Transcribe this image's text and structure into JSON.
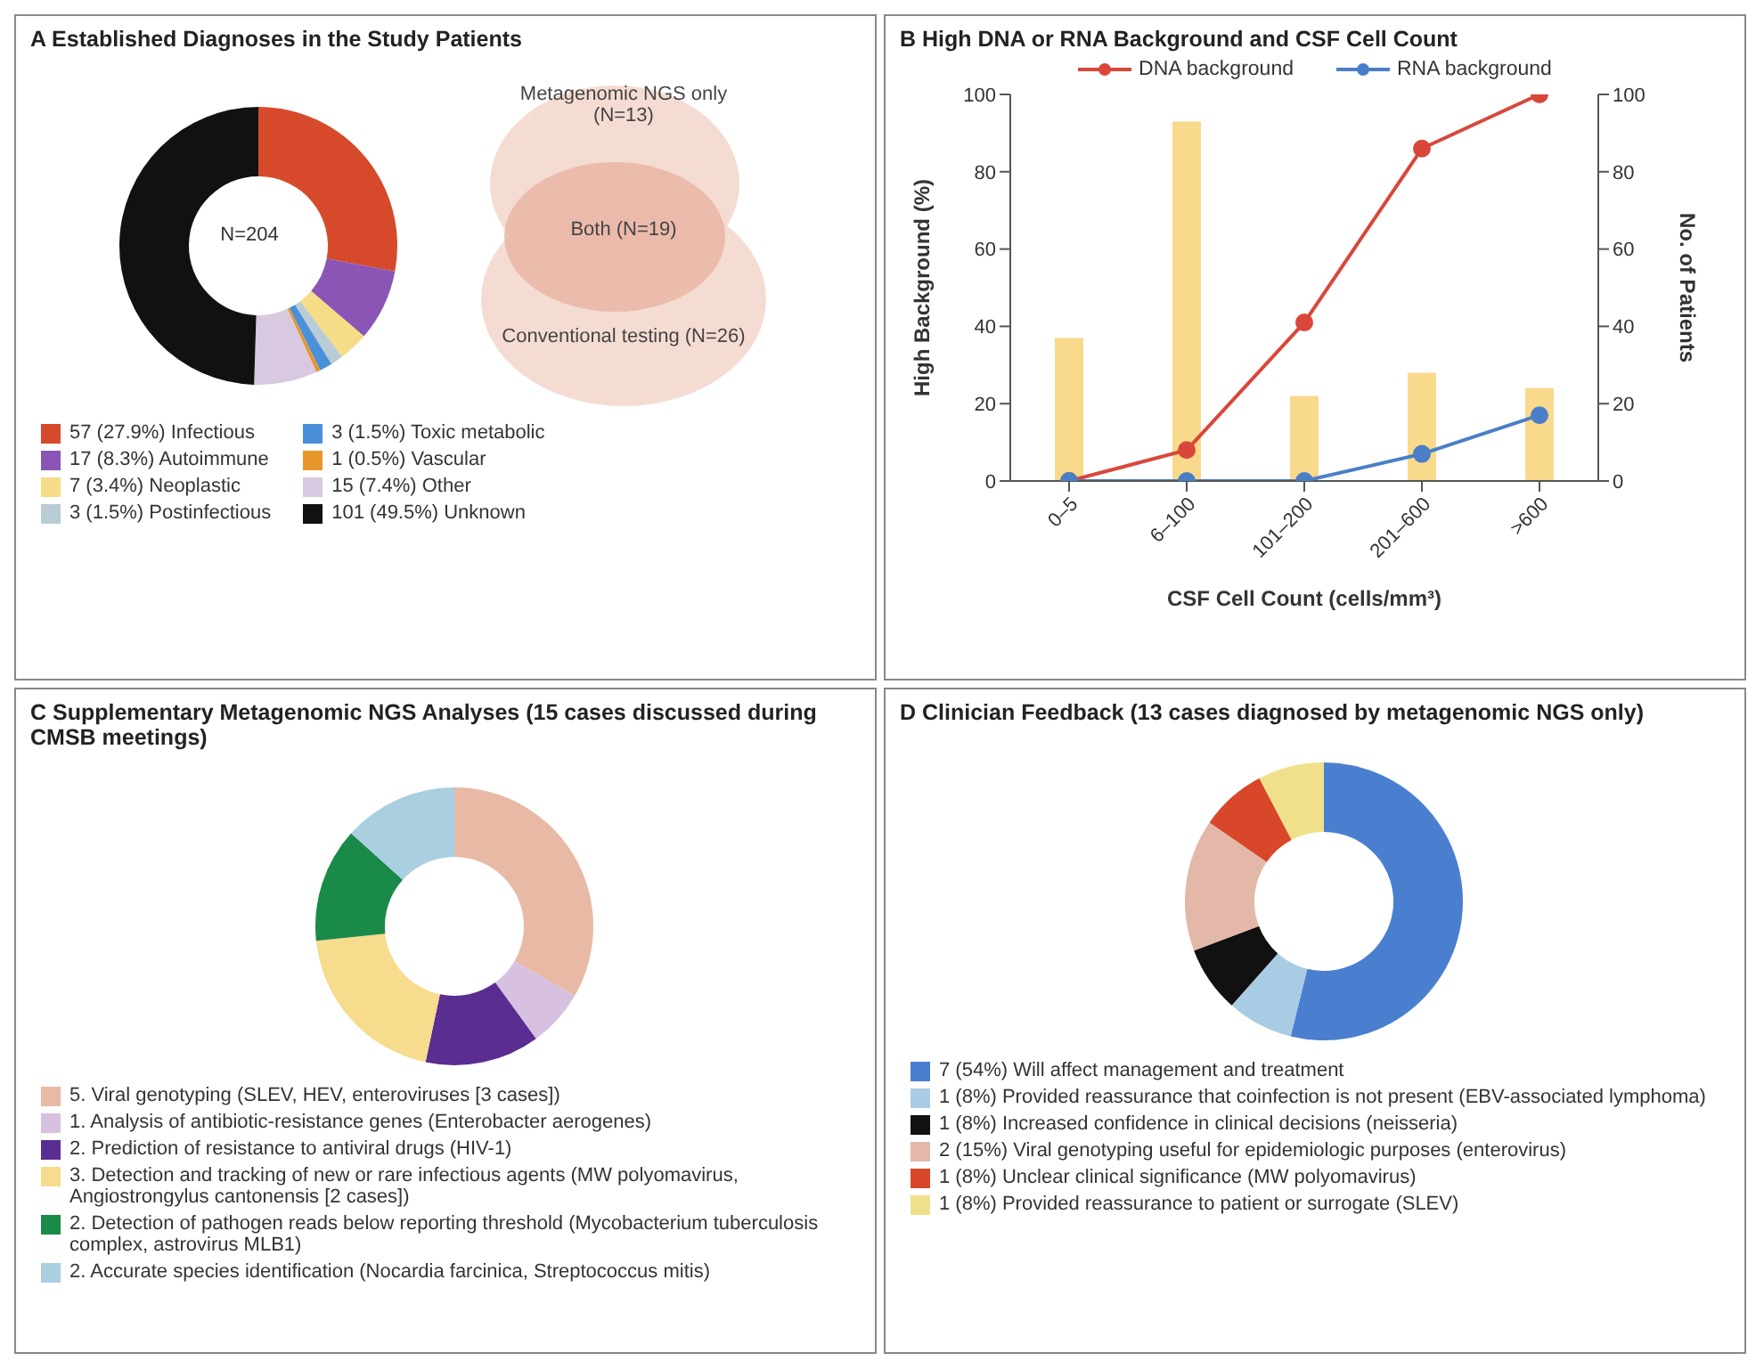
{
  "chart_data": [
    {
      "type": "donut",
      "title": "A  Established Diagnoses in the Study Patients",
      "categories": [
        "57 (27.9%) Infectious",
        "17 (8.3%) Autoimmune",
        "7 (3.4%) Neoplastic",
        "3 (1.5%) Postinfectious",
        "3 (1.5%) Toxic metabolic",
        "1 (0.5%) Vascular",
        "15 (7.4%) Other",
        "101 (49.5%) Unknown"
      ],
      "values": [
        57,
        17,
        7,
        3,
        3,
        1,
        15,
        101
      ],
      "colors": [
        "#d64a2b",
        "#8a55b5",
        "#f5dc86",
        "#b9cbd4",
        "#4a90d9",
        "#e8962a",
        "#d8c9e0",
        "#111111"
      ],
      "legend": "bottom",
      "annotations": [
        "N=204",
        "Metagenomic NGS only (N=13)",
        "Both (N=19)",
        "Conventional testing (N=26)"
      ]
    },
    {
      "type": "line",
      "title": "B  High DNA or RNA Background and CSF Cell Count",
      "categories": [
        "0–5",
        "6–100",
        "101–200",
        "201–600",
        ">600"
      ],
      "xlabel": "CSF Cell Count (cells/mm³)",
      "ylabel": "High Background (%)",
      "y2label": "No. of Patients",
      "ylim": [
        0,
        100
      ],
      "yticks": [
        0,
        20,
        40,
        60,
        80,
        100
      ],
      "y2lim": [
        0,
        100
      ],
      "y2ticks": [
        0,
        20,
        40,
        60,
        80,
        100
      ],
      "legend": "top",
      "marker": "circle",
      "series": [
        {
          "type": "bar",
          "axis": "y2",
          "color": "#f9d98c",
          "values": [
            37,
            93,
            22,
            28,
            24
          ]
        },
        {
          "name": "DNA background",
          "color": "#d9473a",
          "values": [
            0,
            8,
            41,
            86,
            100
          ]
        },
        {
          "name": "RNA background",
          "color": "#4a7fc8",
          "values": [
            0,
            0,
            0,
            7,
            17
          ]
        }
      ]
    },
    {
      "type": "donut",
      "title": "C  Supplementary Metagenomic NGS Analyses (15 cases discussed during CMSB meetings)",
      "categories": [
        "5. Viral genotyping (SLEV, HEV, enteroviruses [3 cases])",
        "1. Analysis of antibiotic-resistance genes (Enterobacter aerogenes)",
        "2. Prediction of resistance to antiviral drugs (HIV-1)",
        "3. Detection and tracking of new or rare infectious agents (MW polyomavirus, Angiostrongylus cantonensis [2 cases])",
        "2. Detection of pathogen reads below reporting threshold (Mycobacterium tuberculosis complex, astrovirus MLB1)",
        "2. Accurate species identification (Nocardia farcinica, Streptococcus mitis)"
      ],
      "values": [
        5,
        1,
        2,
        3,
        2,
        2
      ],
      "colors": [
        "#e8b9a5",
        "#d7c0e0",
        "#5a2d91",
        "#f6dc8c",
        "#1a8a48",
        "#a9cfe0"
      ],
      "legend": "bottom"
    },
    {
      "type": "donut",
      "title": "D  Clinician Feedback (13 cases diagnosed by metagenomic NGS only)",
      "categories": [
        "7 (54%) Will affect management and treatment",
        "1 (8%) Provided reassurance that coinfection is not present (EBV-associated lymphoma)",
        "1 (8%) Increased confidence in clinical decisions (neisseria)",
        "2 (15%) Viral genotyping useful for epidemiologic purposes (enterovirus)",
        "1 (8%) Unclear clinical significance (MW polyomavirus)",
        "1 (8%) Provided reassurance to patient or surrogate (SLEV)"
      ],
      "values": [
        7,
        1,
        1,
        2,
        1,
        1
      ],
      "colors": [
        "#4a7fd0",
        "#a9cbe3",
        "#111111",
        "#e3b8a8",
        "#d9472b",
        "#f0e08a"
      ],
      "legend": "bottom"
    }
  ]
}
